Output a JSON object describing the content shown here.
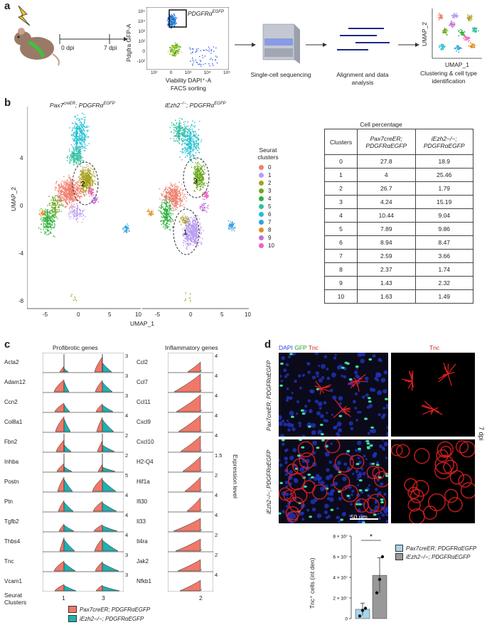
{
  "panel_labels": {
    "a": "a",
    "b": "b",
    "c": "c",
    "d": "d"
  },
  "panel_a": {
    "dpi_start": "0 dpi",
    "dpi_end": "7 dpi",
    "facs_ylabel": "Pdgfra GFP-A",
    "facs_xlabel": "Viability DAPI⁺-A",
    "facs_gate_label": "PDGFRα",
    "facs_gate_sup": "EGFP",
    "facs_title": "FACS sorting",
    "y_ticks": [
      "10⁵",
      "10⁴",
      "10³",
      "10²",
      "0",
      "-10²"
    ],
    "x_ticks": [
      "10²",
      "0",
      "10³",
      "10⁴",
      "10⁵"
    ],
    "step1": "Single-cell sequencing",
    "step2": "Alignment and data analysis",
    "step3": "Clustering & cell type identification",
    "umap1": "UMAP_1",
    "umap2": "UMAP_2"
  },
  "panel_b": {
    "left_title": "Pax7",
    "left_title_sup": "creER",
    "left_title_rest": "; PDGFRα",
    "left_title_sup2": "EGFP",
    "right_title": "iEzh2",
    "right_title_sup": "−/−",
    "right_title_rest": "; PDGFRα",
    "right_title_sup2": "EGFP",
    "xlabel": "UMAP_1",
    "ylabel": "UMAP_2",
    "y_ticks": [
      "4",
      "0",
      "-4",
      "-8"
    ],
    "x_ticks": [
      "-5",
      "0",
      "5",
      "10"
    ],
    "legend_title": "Seurat clusters",
    "legend": [
      {
        "label": "0",
        "color": "#f08070"
      },
      {
        "label": "1",
        "color": "#b89cf0"
      },
      {
        "label": "2",
        "color": "#a8a020"
      },
      {
        "label": "3",
        "color": "#6ca820"
      },
      {
        "label": "4",
        "color": "#30b040"
      },
      {
        "label": "5",
        "color": "#30c0a0"
      },
      {
        "label": "6",
        "color": "#20c0d0"
      },
      {
        "label": "7",
        "color": "#30a0e0"
      },
      {
        "label": "8",
        "color": "#e09020"
      },
      {
        "label": "9",
        "color": "#c070e0"
      },
      {
        "label": "10",
        "color": "#f060c0"
      }
    ],
    "ann_left": "2",
    "ann_right_top": "3",
    "ann_right_bottom": "1",
    "table_title": "Cell percentage",
    "table_head": [
      "Clusters",
      "Pax7creER; PDGFRαEGFP",
      "iEzh2−/−; PDGFRαEGFP"
    ],
    "table_rows": [
      [
        "0",
        "27.8",
        "18.9"
      ],
      [
        "1",
        "4",
        "25.46"
      ],
      [
        "2",
        "26.7",
        "1.79"
      ],
      [
        "3",
        "4.24",
        "15.19"
      ],
      [
        "4",
        "10.44",
        "9.04"
      ],
      [
        "5",
        "7.89",
        "9.86"
      ],
      [
        "6",
        "8.94",
        "8.47"
      ],
      [
        "7",
        "2.59",
        "3.66"
      ],
      [
        "8",
        "2.37",
        "1.74"
      ],
      [
        "9",
        "1.43",
        "2.32"
      ],
      [
        "10",
        "1.63",
        "1.49"
      ]
    ]
  },
  "panel_c": {
    "left_title": "Profibrotic genes",
    "right_title": "Inflammatory genes",
    "left_genes": [
      "Acta2",
      "Adam12",
      "Ccn2",
      "Col8a1",
      "Fbn2",
      "Inhba",
      "Postn",
      "Ptn",
      "Tgfb2",
      "Thbs4",
      "Tnc",
      "Vcam1"
    ],
    "left_scale": [
      "3",
      "3",
      "3",
      "4",
      "2",
      "2",
      "5",
      "4",
      "4",
      "4",
      "3",
      "3"
    ],
    "right_genes": [
      "Ccl2",
      "Ccl7",
      "Ccl11",
      "Cxcl9",
      "Cxcl10",
      "H2-Q4",
      "Hif1a",
      "Ifi30",
      "Il33",
      "Il4ra",
      "Jak2",
      "Nfkb1"
    ],
    "right_scale": [
      "4",
      "4",
      "4",
      "4",
      "4",
      "1.5",
      "2",
      "4",
      "4",
      "2",
      "2",
      "4"
    ],
    "expression_label": "Expression level",
    "x_left": [
      "1",
      "3"
    ],
    "x_right": [
      "2"
    ],
    "seurat_label": "Seurat Clusters",
    "legend": [
      {
        "label": "Pax7creER; PDGFRαEGFP",
        "color": "#f07868"
      },
      {
        "label": "iEzh2−/−; PDGFRαEGFP",
        "color": "#20b0b0"
      }
    ]
  },
  "panel_d": {
    "stain_label": {
      "dapi": "DAPI",
      "gfp": "GFP",
      "tnc": "Tnc"
    },
    "tnc_title": "Tnc",
    "row1_label": "Pax7creER; PDGFRαEGFP",
    "row2_label": "iEzh2−/−; PDGFRαEGFP",
    "dpi_label": "7 dpi",
    "scale_bar": "50 μm",
    "chart_ylabel": "Tnc⁺ cells (int den)",
    "significance": "*",
    "legend": [
      {
        "label": "Pax7creER; PDGFRαEGFP",
        "color": "#a8d4ea"
      },
      {
        "label": "iEzh2−/−; PDGFRαEGFP",
        "color": "#999999"
      }
    ]
  },
  "chart_data": [
    {
      "type": "bar",
      "title": "",
      "ylabel": "Tnc⁺ cells (int den)",
      "categories": [
        "Pax7creER; PDGFRαEGFP",
        "iEzh2−/−; PDGFRαEGFP"
      ],
      "values": [
        9.0,
        42.0
      ],
      "errors": [
        6.0,
        17.0
      ],
      "points": [
        [
          2.5,
          8.0,
          10.0
        ],
        [
          25.0,
          38.0,
          60.0
        ]
      ],
      "ylim": [
        0,
        80
      ],
      "y_ticks": [
        "0",
        "2 × 10⁷",
        "4 × 10⁷",
        "6 × 10⁷",
        "8 × 10⁷"
      ],
      "y_tick_values": [
        0,
        20,
        40,
        60,
        80
      ],
      "colors": [
        "#a8d4ea",
        "#999999"
      ]
    }
  ]
}
